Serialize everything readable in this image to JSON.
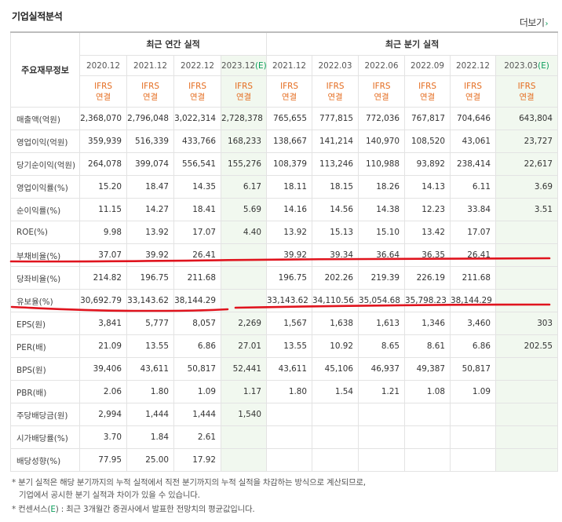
{
  "header": {
    "title": "기업실적분석",
    "more_label": "더보기",
    "more_arrow": "›"
  },
  "table": {
    "row_header_label": "주요재무정보",
    "group_annual": "최근 연간 실적",
    "group_quarter": "최근 분기 실적",
    "annual_periods": [
      "2020.12",
      "2021.12",
      "2022.12",
      "2023.12"
    ],
    "annual_est_mark": "(E)",
    "quarter_periods": [
      "2021.12",
      "2022.03",
      "2022.06",
      "2022.09",
      "2022.12",
      "2023.03"
    ],
    "quarter_est_mark": "(E)",
    "standard": "IFRS",
    "consolidation": "연결",
    "rows": [
      {
        "label": "매출액(억원)",
        "annual": [
          "2,368,070",
          "2,796,048",
          "3,022,314",
          "2,728,378"
        ],
        "quarter": [
          "765,655",
          "777,815",
          "772,036",
          "767,817",
          "704,646",
          "643,804"
        ]
      },
      {
        "label": "영업이익(억원)",
        "annual": [
          "359,939",
          "516,339",
          "433,766",
          "168,233"
        ],
        "quarter": [
          "138,667",
          "141,214",
          "140,970",
          "108,520",
          "43,061",
          "23,727"
        ]
      },
      {
        "label": "당기순이익(억원)",
        "annual": [
          "264,078",
          "399,074",
          "556,541",
          "155,276"
        ],
        "quarter": [
          "108,379",
          "113,246",
          "110,988",
          "93,892",
          "238,414",
          "22,617"
        ]
      },
      {
        "label": "영업이익률(%)",
        "annual": [
          "15.20",
          "18.47",
          "14.35",
          "6.17"
        ],
        "quarter": [
          "18.11",
          "18.15",
          "18.26",
          "14.13",
          "6.11",
          "3.69"
        ]
      },
      {
        "label": "순이익률(%)",
        "annual": [
          "11.15",
          "14.27",
          "18.41",
          "5.69"
        ],
        "quarter": [
          "14.16",
          "14.56",
          "14.38",
          "12.23",
          "33.84",
          "3.51"
        ]
      },
      {
        "label": "ROE(%)",
        "annual": [
          "9.98",
          "13.92",
          "17.07",
          "4.40"
        ],
        "quarter": [
          "13.92",
          "15.13",
          "15.10",
          "13.42",
          "17.07",
          ""
        ]
      },
      {
        "label": "부채비율(%)",
        "annual": [
          "37.07",
          "39.92",
          "26.41",
          ""
        ],
        "quarter": [
          "39.92",
          "39.34",
          "36.64",
          "36.35",
          "26.41",
          ""
        ]
      },
      {
        "label": "당좌비율(%)",
        "annual": [
          "214.82",
          "196.75",
          "211.68",
          ""
        ],
        "quarter": [
          "196.75",
          "202.26",
          "219.39",
          "226.19",
          "211.68",
          ""
        ]
      },
      {
        "label": "유보율(%)",
        "annual": [
          "30,692.79",
          "33,143.62",
          "38,144.29",
          ""
        ],
        "quarter": [
          "33,143.62",
          "34,110.56",
          "35,054.68",
          "35,798.23",
          "38,144.29",
          ""
        ]
      },
      {
        "label": "EPS(원)",
        "annual": [
          "3,841",
          "5,777",
          "8,057",
          "2,269"
        ],
        "quarter": [
          "1,567",
          "1,638",
          "1,613",
          "1,346",
          "3,460",
          "303"
        ]
      },
      {
        "label": "PER(배)",
        "annual": [
          "21.09",
          "13.55",
          "6.86",
          "27.01"
        ],
        "quarter": [
          "13.55",
          "10.92",
          "8.65",
          "8.61",
          "6.86",
          "202.55"
        ]
      },
      {
        "label": "BPS(원)",
        "annual": [
          "39,406",
          "43,611",
          "50,817",
          "52,441"
        ],
        "quarter": [
          "43,611",
          "45,106",
          "46,937",
          "49,387",
          "50,817",
          ""
        ]
      },
      {
        "label": "PBR(배)",
        "annual": [
          "2.06",
          "1.80",
          "1.09",
          "1.17"
        ],
        "quarter": [
          "1.80",
          "1.54",
          "1.21",
          "1.08",
          "1.09",
          ""
        ]
      },
      {
        "label": "주당배당금(원)",
        "annual": [
          "2,994",
          "1,444",
          "1,444",
          "1,540"
        ],
        "quarter": [
          "",
          "",
          "",
          "",
          "",
          ""
        ]
      },
      {
        "label": "시가배당률(%)",
        "annual": [
          "3.70",
          "1.84",
          "2.61",
          ""
        ],
        "quarter": [
          "",
          "",
          "",
          "",
          "",
          ""
        ]
      },
      {
        "label": "배당성향(%)",
        "annual": [
          "77.95",
          "25.00",
          "17.92",
          ""
        ],
        "quarter": [
          "",
          "",
          "",
          "",
          "",
          ""
        ]
      }
    ]
  },
  "notes": {
    "line1": "* 분기 실적은 해당 분기까지의 누적 실적에서 직전 분기까지의 누적 실적을 차감하는 방식으로 계산되므로,",
    "line2": "기업에서 공시한 분기 실적과 차이가 있을 수 있습니다.",
    "line3_prefix": "* 컨센서스(",
    "line3_mark": "E",
    "line3_suffix": ") : 최근 3개월간 증권사에서 발표한 전망치의 평균값입니다."
  },
  "colors": {
    "accent_orange": "#e46c1f",
    "estimate_green": "#0a9d5a",
    "estimate_bg": "#f1f8ef",
    "annotation_red": "#e0141e"
  }
}
